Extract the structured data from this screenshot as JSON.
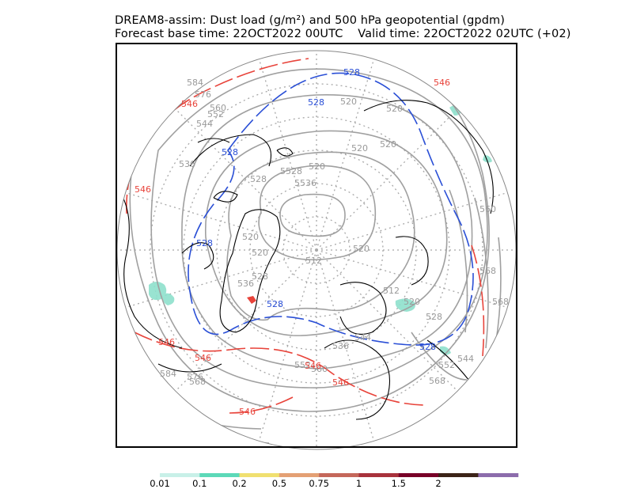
{
  "title": {
    "line1": "DREAM8-assim: Dust load (g/m²) and 500 hPa geopotential (gpdm)",
    "line2": "Forecast base time: 22OCT2022 00UTC    Valid time: 22OCT2022 02UTC (+02)"
  },
  "projection": "north-polar-stereographic",
  "colors": {
    "contour_gray": "#a0a0a0",
    "contour_blue": "#2a4fd6",
    "contour_red": "#e8433a",
    "coast": "#000000",
    "graticule": "#a8a8a8"
  },
  "contour_labels": {
    "gray": [
      "584",
      "576",
      "560",
      "552",
      "544",
      "536",
      "528",
      "520",
      "5528",
      "5536",
      "520",
      "520",
      "520",
      "512",
      "520",
      "536",
      "544",
      "552",
      "560",
      "568",
      "576",
      "584",
      "568",
      "560",
      "568",
      "512",
      "528",
      "520",
      "544",
      "552",
      "520",
      "520",
      "568",
      "536",
      "520",
      "528"
    ],
    "blue": [
      "528",
      "528",
      "528",
      "528",
      "528",
      "528"
    ],
    "red": [
      "546",
      "546",
      "546",
      "546",
      "546",
      "546",
      "546",
      "546"
    ]
  },
  "legend": {
    "colors": [
      "#c8f0e8",
      "#5cd9b8",
      "#f0e070",
      "#e4a074",
      "#c4675a",
      "#a8323c",
      "#780028",
      "#3c2418",
      "#8c6cac"
    ],
    "labels": [
      "0.01",
      "0.1",
      "0.2",
      "0.5",
      "0.75",
      "1",
      "1.5",
      "2"
    ]
  }
}
